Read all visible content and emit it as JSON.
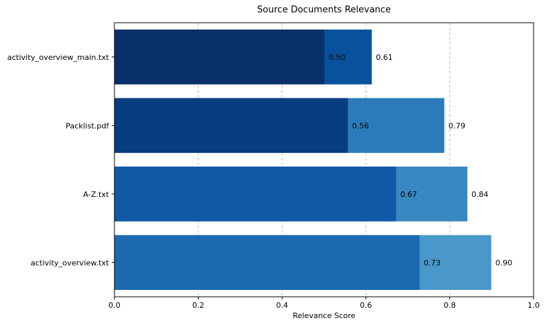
{
  "chart_data": {
    "type": "bar",
    "orientation": "horizontal",
    "title": "Source Documents Relevance",
    "xlabel": "Relevance Score",
    "ylabel": "",
    "xlim": [
      0,
      1
    ],
    "xticks": [
      "0.0",
      "0.2",
      "0.4",
      "0.6",
      "0.8",
      "1.0"
    ],
    "grid": "vertical dashed",
    "categories": [
      "activity_overview_main.txt",
      "Packlist.pdf",
      "A-Z.txt",
      "activity_overview.txt"
    ],
    "series": [
      {
        "values": [
          0.614,
          0.787,
          0.842,
          0.899
        ],
        "labels": [
          "0.61",
          "0.79",
          "0.84",
          "0.90"
        ],
        "colors": [
          "#08519c",
          "#2b7bba",
          "#3787c0",
          "#4a98c9"
        ]
      },
      {
        "values": [
          0.501,
          0.557,
          0.672,
          0.728
        ],
        "labels": [
          "0.50",
          "0.56",
          "0.67",
          "0.73"
        ],
        "colors": [
          "#08306b",
          "#083d7f",
          "#1158a6",
          "#1c6aaf"
        ]
      }
    ]
  }
}
